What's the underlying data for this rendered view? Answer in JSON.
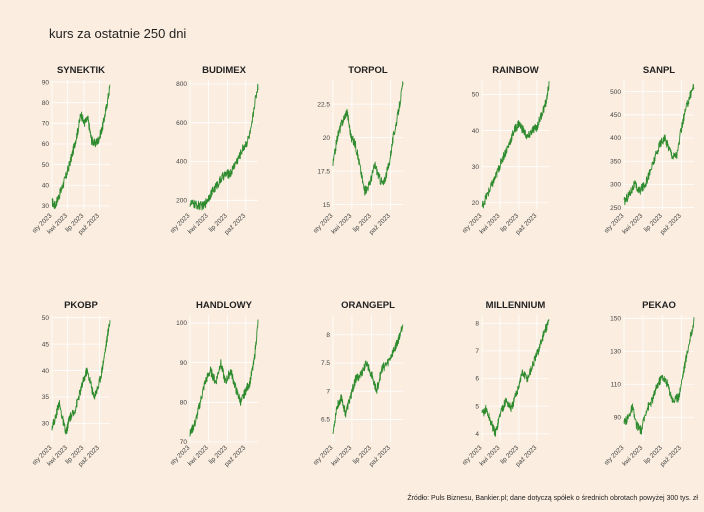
{
  "title": "kurs za ostatnie 250 dni",
  "source": "Źródło: Puls Biznesu, Bankier.pl; dane dotyczą spółek o średnich obrotach powyżej 300 tys. zł",
  "colors": {
    "background": "#fbeee0",
    "grid": "#ffffff",
    "line": "#2e8b2e"
  },
  "chart_data": [
    {
      "type": "line",
      "title": "SYNEKTIK",
      "yticks": [
        30,
        40,
        50,
        60,
        70,
        80,
        90
      ],
      "ylim": [
        28,
        91
      ],
      "xticks": [
        "sty 2023",
        "kwi 2023",
        "lip 2023",
        "paź 2023"
      ],
      "anchors": [
        [
          0,
          32
        ],
        [
          0.05,
          30
        ],
        [
          0.15,
          37
        ],
        [
          0.25,
          45
        ],
        [
          0.35,
          55
        ],
        [
          0.45,
          67
        ],
        [
          0.5,
          75
        ],
        [
          0.55,
          70
        ],
        [
          0.62,
          72
        ],
        [
          0.68,
          62
        ],
        [
          0.74,
          60
        ],
        [
          0.8,
          62
        ],
        [
          0.87,
          68
        ],
        [
          0.94,
          78
        ],
        [
          1,
          88
        ]
      ]
    },
    {
      "type": "line",
      "title": "BUDIMEX",
      "yticks": [
        200,
        400,
        600,
        800
      ],
      "ylim": [
        150,
        820
      ],
      "xticks": [
        "sty 2023",
        "kwi 2023",
        "lip 2023",
        "paź 2023"
      ],
      "anchors": [
        [
          0,
          185
        ],
        [
          0.1,
          175
        ],
        [
          0.2,
          170
        ],
        [
          0.3,
          230
        ],
        [
          0.4,
          280
        ],
        [
          0.5,
          330
        ],
        [
          0.6,
          340
        ],
        [
          0.65,
          380
        ],
        [
          0.72,
          420
        ],
        [
          0.78,
          470
        ],
        [
          0.84,
          500
        ],
        [
          0.9,
          560
        ],
        [
          0.95,
          700
        ],
        [
          1,
          790
        ]
      ]
    },
    {
      "type": "line",
      "title": "TORPOL",
      "yticks": [
        15,
        17.5,
        20,
        22.5
      ],
      "ylim": [
        14.6,
        24.3
      ],
      "xticks": [
        "sty 2023",
        "kwi 2023",
        "lip 2023",
        "paź 2023"
      ],
      "anchors": [
        [
          0,
          18
        ],
        [
          0.06,
          20
        ],
        [
          0.12,
          21
        ],
        [
          0.2,
          22
        ],
        [
          0.26,
          20
        ],
        [
          0.32,
          19.5
        ],
        [
          0.38,
          18
        ],
        [
          0.45,
          16
        ],
        [
          0.52,
          16.5
        ],
        [
          0.6,
          18
        ],
        [
          0.66,
          17
        ],
        [
          0.72,
          16.5
        ],
        [
          0.8,
          18
        ],
        [
          0.86,
          20
        ],
        [
          0.92,
          21.5
        ],
        [
          1,
          24
        ]
      ]
    },
    {
      "type": "line",
      "title": "RAINBOW",
      "yticks": [
        20,
        30,
        40,
        50
      ],
      "ylim": [
        18,
        54
      ],
      "xticks": [
        "sty 2023",
        "kwi 2023",
        "lip 2023",
        "paź 2023"
      ],
      "anchors": [
        [
          0,
          19
        ],
        [
          0.1,
          23
        ],
        [
          0.2,
          27
        ],
        [
          0.3,
          32
        ],
        [
          0.4,
          36
        ],
        [
          0.48,
          40
        ],
        [
          0.55,
          42
        ],
        [
          0.62,
          40
        ],
        [
          0.68,
          38
        ],
        [
          0.75,
          40
        ],
        [
          0.82,
          41
        ],
        [
          0.9,
          45
        ],
        [
          0.96,
          48
        ],
        [
          1,
          53
        ]
      ]
    },
    {
      "type": "line",
      "title": "SANPL",
      "yticks": [
        250,
        300,
        350,
        400,
        450,
        500
      ],
      "ylim": [
        245,
        525
      ],
      "xticks": [
        "sty 2023",
        "kwi 2023",
        "lip 2023",
        "paź 2023"
      ],
      "anchors": [
        [
          0,
          262
        ],
        [
          0.08,
          280
        ],
        [
          0.15,
          300
        ],
        [
          0.22,
          285
        ],
        [
          0.3,
          300
        ],
        [
          0.38,
          330
        ],
        [
          0.45,
          360
        ],
        [
          0.52,
          390
        ],
        [
          0.58,
          400
        ],
        [
          0.64,
          380
        ],
        [
          0.7,
          360
        ],
        [
          0.76,
          365
        ],
        [
          0.82,
          420
        ],
        [
          0.88,
          460
        ],
        [
          0.94,
          490
        ],
        [
          1,
          515
        ]
      ]
    },
    {
      "type": "line",
      "title": "PKOBP",
      "yticks": [
        30,
        35,
        40,
        45,
        50
      ],
      "ylim": [
        26.5,
        50.5
      ],
      "xticks": [
        "sty 2023",
        "kwi 2023",
        "lip 2023",
        "paź 2023"
      ],
      "anchors": [
        [
          0,
          29.5
        ],
        [
          0.06,
          31
        ],
        [
          0.12,
          34
        ],
        [
          0.18,
          31
        ],
        [
          0.24,
          28
        ],
        [
          0.3,
          31
        ],
        [
          0.38,
          32
        ],
        [
          0.46,
          35
        ],
        [
          0.54,
          38
        ],
        [
          0.6,
          40
        ],
        [
          0.66,
          38
        ],
        [
          0.72,
          35
        ],
        [
          0.8,
          37
        ],
        [
          0.86,
          40
        ],
        [
          0.92,
          44
        ],
        [
          1,
          49.5
        ]
      ]
    },
    {
      "type": "line",
      "title": "HANDLOWY",
      "yticks": [
        70,
        80,
        90,
        100
      ],
      "ylim": [
        70,
        102
      ],
      "xticks": [
        "sty 2023",
        "kwi 2023",
        "lip 2023",
        "paź 2023"
      ],
      "anchors": [
        [
          0,
          72
        ],
        [
          0.08,
          75
        ],
        [
          0.15,
          80
        ],
        [
          0.22,
          85
        ],
        [
          0.3,
          88
        ],
        [
          0.38,
          85
        ],
        [
          0.45,
          90
        ],
        [
          0.52,
          85
        ],
        [
          0.6,
          88
        ],
        [
          0.68,
          83
        ],
        [
          0.75,
          80
        ],
        [
          0.82,
          83
        ],
        [
          0.88,
          85
        ],
        [
          0.94,
          90
        ],
        [
          1,
          100
        ]
      ]
    },
    {
      "type": "line",
      "title": "ORANGEPL",
      "yticks": [
        6.5,
        7,
        7.5,
        8
      ],
      "ylim": [
        6.1,
        8.35
      ],
      "xticks": [
        "sty 2023",
        "kwi 2023",
        "lip 2023",
        "paź 2023"
      ],
      "anchors": [
        [
          0,
          6.25
        ],
        [
          0.05,
          6.7
        ],
        [
          0.12,
          6.9
        ],
        [
          0.18,
          6.6
        ],
        [
          0.25,
          6.9
        ],
        [
          0.32,
          7.2
        ],
        [
          0.4,
          7.3
        ],
        [
          0.48,
          7.5
        ],
        [
          0.55,
          7.3
        ],
        [
          0.62,
          7.0
        ],
        [
          0.7,
          7.4
        ],
        [
          0.78,
          7.5
        ],
        [
          0.86,
          7.7
        ],
        [
          0.93,
          7.9
        ],
        [
          1,
          8.2
        ]
      ]
    },
    {
      "type": "line",
      "title": "MILLENNIUM",
      "yticks": [
        4,
        5,
        6,
        7,
        8
      ],
      "ylim": [
        3.7,
        8.3
      ],
      "xticks": [
        "sty 2023",
        "kwi 2023",
        "lip 2023",
        "paź 2023"
      ],
      "anchors": [
        [
          0,
          4.7
        ],
        [
          0.06,
          4.9
        ],
        [
          0.12,
          4.5
        ],
        [
          0.2,
          4.0
        ],
        [
          0.28,
          4.8
        ],
        [
          0.36,
          5.2
        ],
        [
          0.44,
          4.9
        ],
        [
          0.52,
          5.5
        ],
        [
          0.6,
          6.2
        ],
        [
          0.68,
          6.0
        ],
        [
          0.76,
          6.5
        ],
        [
          0.84,
          7.0
        ],
        [
          0.92,
          7.6
        ],
        [
          1,
          8.1
        ]
      ]
    },
    {
      "type": "line",
      "title": "PEKAO",
      "yticks": [
        90,
        110,
        130,
        150
      ],
      "ylim": [
        75,
        152
      ],
      "xticks": [
        "sty 2023",
        "kwi 2023",
        "lip 2023",
        "paź 2023"
      ],
      "anchors": [
        [
          0,
          86
        ],
        [
          0.06,
          90
        ],
        [
          0.12,
          96
        ],
        [
          0.18,
          85
        ],
        [
          0.25,
          82
        ],
        [
          0.32,
          95
        ],
        [
          0.4,
          100
        ],
        [
          0.48,
          110
        ],
        [
          0.55,
          115
        ],
        [
          0.62,
          110
        ],
        [
          0.7,
          100
        ],
        [
          0.78,
          102
        ],
        [
          0.86,
          120
        ],
        [
          0.93,
          135
        ],
        [
          1,
          148
        ]
      ]
    }
  ]
}
